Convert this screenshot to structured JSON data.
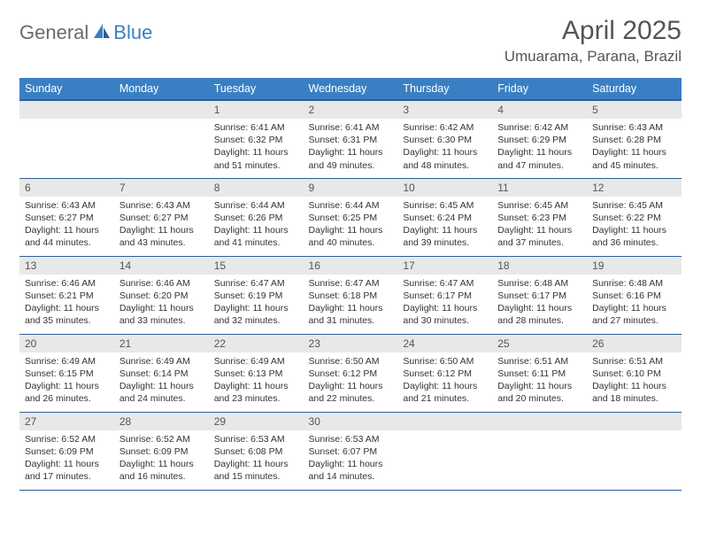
{
  "logo": {
    "part1": "General",
    "part2": "Blue"
  },
  "title": "April 2025",
  "location": "Umuarama, Parana, Brazil",
  "colors": {
    "header_bg": "#3a7fc4",
    "header_border": "#2d5f94",
    "daynum_bg": "#e8e8e8",
    "text": "#333333",
    "title_text": "#555555"
  },
  "weekdays": [
    "Sunday",
    "Monday",
    "Tuesday",
    "Wednesday",
    "Thursday",
    "Friday",
    "Saturday"
  ],
  "weeks": [
    [
      null,
      null,
      {
        "n": "1",
        "sr": "Sunrise: 6:41 AM",
        "ss": "Sunset: 6:32 PM",
        "dl": "Daylight: 11 hours and 51 minutes."
      },
      {
        "n": "2",
        "sr": "Sunrise: 6:41 AM",
        "ss": "Sunset: 6:31 PM",
        "dl": "Daylight: 11 hours and 49 minutes."
      },
      {
        "n": "3",
        "sr": "Sunrise: 6:42 AM",
        "ss": "Sunset: 6:30 PM",
        "dl": "Daylight: 11 hours and 48 minutes."
      },
      {
        "n": "4",
        "sr": "Sunrise: 6:42 AM",
        "ss": "Sunset: 6:29 PM",
        "dl": "Daylight: 11 hours and 47 minutes."
      },
      {
        "n": "5",
        "sr": "Sunrise: 6:43 AM",
        "ss": "Sunset: 6:28 PM",
        "dl": "Daylight: 11 hours and 45 minutes."
      }
    ],
    [
      {
        "n": "6",
        "sr": "Sunrise: 6:43 AM",
        "ss": "Sunset: 6:27 PM",
        "dl": "Daylight: 11 hours and 44 minutes."
      },
      {
        "n": "7",
        "sr": "Sunrise: 6:43 AM",
        "ss": "Sunset: 6:27 PM",
        "dl": "Daylight: 11 hours and 43 minutes."
      },
      {
        "n": "8",
        "sr": "Sunrise: 6:44 AM",
        "ss": "Sunset: 6:26 PM",
        "dl": "Daylight: 11 hours and 41 minutes."
      },
      {
        "n": "9",
        "sr": "Sunrise: 6:44 AM",
        "ss": "Sunset: 6:25 PM",
        "dl": "Daylight: 11 hours and 40 minutes."
      },
      {
        "n": "10",
        "sr": "Sunrise: 6:45 AM",
        "ss": "Sunset: 6:24 PM",
        "dl": "Daylight: 11 hours and 39 minutes."
      },
      {
        "n": "11",
        "sr": "Sunrise: 6:45 AM",
        "ss": "Sunset: 6:23 PM",
        "dl": "Daylight: 11 hours and 37 minutes."
      },
      {
        "n": "12",
        "sr": "Sunrise: 6:45 AM",
        "ss": "Sunset: 6:22 PM",
        "dl": "Daylight: 11 hours and 36 minutes."
      }
    ],
    [
      {
        "n": "13",
        "sr": "Sunrise: 6:46 AM",
        "ss": "Sunset: 6:21 PM",
        "dl": "Daylight: 11 hours and 35 minutes."
      },
      {
        "n": "14",
        "sr": "Sunrise: 6:46 AM",
        "ss": "Sunset: 6:20 PM",
        "dl": "Daylight: 11 hours and 33 minutes."
      },
      {
        "n": "15",
        "sr": "Sunrise: 6:47 AM",
        "ss": "Sunset: 6:19 PM",
        "dl": "Daylight: 11 hours and 32 minutes."
      },
      {
        "n": "16",
        "sr": "Sunrise: 6:47 AM",
        "ss": "Sunset: 6:18 PM",
        "dl": "Daylight: 11 hours and 31 minutes."
      },
      {
        "n": "17",
        "sr": "Sunrise: 6:47 AM",
        "ss": "Sunset: 6:17 PM",
        "dl": "Daylight: 11 hours and 30 minutes."
      },
      {
        "n": "18",
        "sr": "Sunrise: 6:48 AM",
        "ss": "Sunset: 6:17 PM",
        "dl": "Daylight: 11 hours and 28 minutes."
      },
      {
        "n": "19",
        "sr": "Sunrise: 6:48 AM",
        "ss": "Sunset: 6:16 PM",
        "dl": "Daylight: 11 hours and 27 minutes."
      }
    ],
    [
      {
        "n": "20",
        "sr": "Sunrise: 6:49 AM",
        "ss": "Sunset: 6:15 PM",
        "dl": "Daylight: 11 hours and 26 minutes."
      },
      {
        "n": "21",
        "sr": "Sunrise: 6:49 AM",
        "ss": "Sunset: 6:14 PM",
        "dl": "Daylight: 11 hours and 24 minutes."
      },
      {
        "n": "22",
        "sr": "Sunrise: 6:49 AM",
        "ss": "Sunset: 6:13 PM",
        "dl": "Daylight: 11 hours and 23 minutes."
      },
      {
        "n": "23",
        "sr": "Sunrise: 6:50 AM",
        "ss": "Sunset: 6:12 PM",
        "dl": "Daylight: 11 hours and 22 minutes."
      },
      {
        "n": "24",
        "sr": "Sunrise: 6:50 AM",
        "ss": "Sunset: 6:12 PM",
        "dl": "Daylight: 11 hours and 21 minutes."
      },
      {
        "n": "25",
        "sr": "Sunrise: 6:51 AM",
        "ss": "Sunset: 6:11 PM",
        "dl": "Daylight: 11 hours and 20 minutes."
      },
      {
        "n": "26",
        "sr": "Sunrise: 6:51 AM",
        "ss": "Sunset: 6:10 PM",
        "dl": "Daylight: 11 hours and 18 minutes."
      }
    ],
    [
      {
        "n": "27",
        "sr": "Sunrise: 6:52 AM",
        "ss": "Sunset: 6:09 PM",
        "dl": "Daylight: 11 hours and 17 minutes."
      },
      {
        "n": "28",
        "sr": "Sunrise: 6:52 AM",
        "ss": "Sunset: 6:09 PM",
        "dl": "Daylight: 11 hours and 16 minutes."
      },
      {
        "n": "29",
        "sr": "Sunrise: 6:53 AM",
        "ss": "Sunset: 6:08 PM",
        "dl": "Daylight: 11 hours and 15 minutes."
      },
      {
        "n": "30",
        "sr": "Sunrise: 6:53 AM",
        "ss": "Sunset: 6:07 PM",
        "dl": "Daylight: 11 hours and 14 minutes."
      },
      null,
      null,
      null
    ]
  ]
}
